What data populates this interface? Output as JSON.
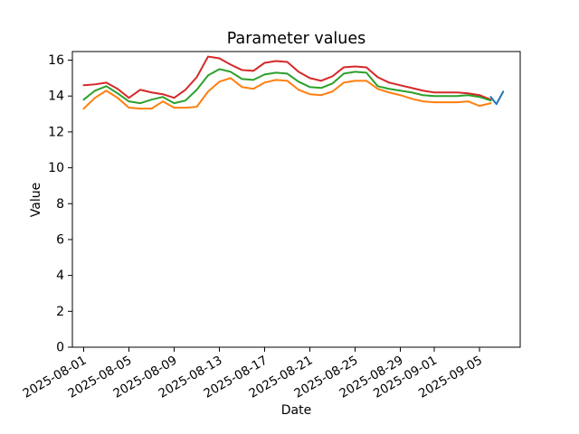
{
  "figure": {
    "title": "Parameter values",
    "xlabel": "Date",
    "ylabel": "Value"
  },
  "chart_data": {
    "type": "line",
    "title": "Parameter values",
    "xlabel": "Date",
    "ylabel": "Value",
    "grid": false,
    "legend": false,
    "x_axis": {
      "start_date": "2025-08-01",
      "unit": "days since 2025-08-01",
      "range_days": [
        -1,
        38.6
      ],
      "tick_day_offsets": [
        0,
        4,
        8,
        12,
        16,
        20,
        24,
        28,
        31,
        35
      ],
      "tick_labels": [
        "2025-08-01",
        "2025-08-05",
        "2025-08-09",
        "2025-08-13",
        "2025-08-17",
        "2025-08-21",
        "2025-08-25",
        "2025-08-29",
        "2025-09-01",
        "2025-09-05"
      ],
      "tick_rotation_deg": 30
    },
    "y_axis": {
      "range": [
        0,
        16.48
      ],
      "ticks": [
        0,
        2,
        4,
        6,
        8,
        10,
        12,
        14,
        16
      ]
    },
    "series": [
      {
        "name": "red",
        "color": "#d62728",
        "day_offsets": [
          0,
          1,
          2,
          3,
          4,
          5,
          6,
          7,
          8,
          9,
          10,
          11,
          12,
          13,
          14,
          15,
          16,
          17,
          18,
          19,
          20,
          21,
          22,
          23,
          24,
          25,
          26,
          27,
          28,
          29,
          30,
          31,
          32,
          33,
          34,
          35,
          36
        ],
        "values": [
          14.6,
          14.65,
          14.75,
          14.4,
          13.9,
          14.35,
          14.2,
          14.1,
          13.9,
          14.35,
          15.05,
          16.2,
          16.1,
          15.75,
          15.45,
          15.4,
          15.85,
          15.95,
          15.9,
          15.35,
          15.0,
          14.85,
          15.1,
          15.6,
          15.65,
          15.6,
          15.05,
          14.75,
          14.6,
          14.45,
          14.3,
          14.2,
          14.2,
          14.2,
          14.15,
          14.05,
          13.8
        ]
      },
      {
        "name": "green",
        "color": "#2ca02c",
        "day_offsets": [
          0,
          1,
          2,
          3,
          4,
          5,
          6,
          7,
          8,
          9,
          10,
          11,
          12,
          13,
          14,
          15,
          16,
          17,
          18,
          19,
          20,
          21,
          22,
          23,
          24,
          25,
          26,
          27,
          28,
          29,
          30,
          31,
          32,
          33,
          34,
          35,
          36
        ],
        "values": [
          13.8,
          14.3,
          14.55,
          14.15,
          13.7,
          13.6,
          13.8,
          13.95,
          13.6,
          13.75,
          14.35,
          15.15,
          15.5,
          15.35,
          14.95,
          14.9,
          15.2,
          15.3,
          15.25,
          14.8,
          14.5,
          14.45,
          14.7,
          15.25,
          15.35,
          15.3,
          14.55,
          14.4,
          14.3,
          14.2,
          14.05,
          14.0,
          14.0,
          14.0,
          14.05,
          13.95,
          13.75
        ]
      },
      {
        "name": "orange",
        "color": "#ff7f0e",
        "day_offsets": [
          0,
          1,
          2,
          3,
          4,
          5,
          6,
          7,
          8,
          9,
          10,
          11,
          12,
          13,
          14,
          15,
          16,
          17,
          18,
          19,
          20,
          21,
          22,
          23,
          24,
          25,
          26,
          27,
          28,
          29,
          30,
          31,
          32,
          33,
          34,
          35,
          36
        ],
        "values": [
          13.3,
          13.9,
          14.3,
          13.9,
          13.35,
          13.3,
          13.3,
          13.7,
          13.35,
          13.35,
          13.4,
          14.25,
          14.8,
          15.0,
          14.5,
          14.4,
          14.75,
          14.9,
          14.85,
          14.35,
          14.1,
          14.05,
          14.25,
          14.75,
          14.85,
          14.85,
          14.4,
          14.2,
          14.05,
          13.85,
          13.7,
          13.65,
          13.65,
          13.65,
          13.7,
          13.45,
          13.6
        ]
      },
      {
        "name": "blue",
        "color": "#1f77b4",
        "day_offsets": [
          36,
          36.5,
          37.1
        ],
        "values": [
          13.95,
          13.55,
          14.25
        ]
      }
    ]
  }
}
